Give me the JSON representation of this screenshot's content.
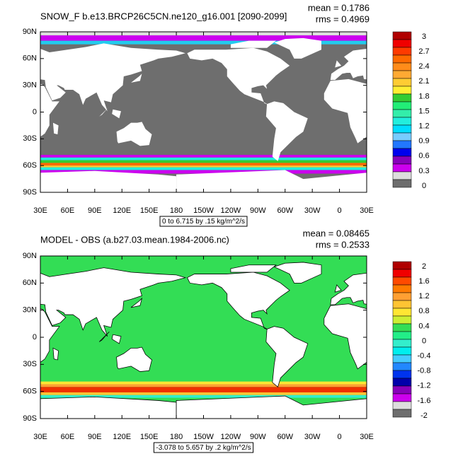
{
  "panels": [
    {
      "title": "SNOW_F b.e13.BRCP26C5CN.ne120_g16.001 [2090-2099]",
      "mean": "mean = 0.1786",
      "rms": "rms = 0.4969",
      "lat_labels": [
        "90N",
        "60N",
        "30N",
        "0",
        "30S",
        "60S",
        "90S"
      ],
      "lon_labels": [
        "30E",
        "60E",
        "90E",
        "120E",
        "150E",
        "180",
        "150W",
        "120W",
        "90W",
        "60W",
        "30W",
        "0",
        "30E"
      ],
      "range": "0 to 6.715 by .15 kg/m^2/s",
      "colorbar": {
        "labels": [
          "3",
          "2.7",
          "2.4",
          "2.1",
          "1.8",
          "1.5",
          "1.2",
          "0.9",
          "0.6",
          "0.3",
          "0"
        ],
        "colors": [
          "#b00000",
          "#f00000",
          "#ff3a00",
          "#ff6a00",
          "#ff8c1a",
          "#ffaa33",
          "#ffcc33",
          "#ffee33",
          "#33cc33",
          "#22ee77",
          "#33eeaa",
          "#22eedd",
          "#00ddff",
          "#77ccff",
          "#2277ff",
          "#0000ee",
          "#8800bb",
          "#cc00ee",
          "#dddddd",
          "#6e6e6e"
        ]
      }
    },
    {
      "title": "MODEL - OBS (a.b27.03.mean.1984-2006.nc)",
      "mean": "mean = 0.08465",
      "rms": "rms = 0.2533",
      "lat_labels": [
        "90N",
        "60N",
        "30N",
        "0",
        "30S",
        "60S",
        "90S"
      ],
      "lon_labels": [
        "30E",
        "60E",
        "90E",
        "120E",
        "150E",
        "180",
        "150W",
        "120W",
        "90W",
        "60W",
        "30W",
        "0",
        "30E"
      ],
      "range": "-3.078 to 5.657 by .2 kg/m^2/s",
      "colorbar": {
        "labels": [
          "2",
          "1.6",
          "1.2",
          "0.8",
          "0.4",
          "0",
          "-0.4",
          "-0.8",
          "-1.2",
          "-1.6",
          "-2"
        ],
        "colors": [
          "#b00000",
          "#f00000",
          "#ff4a00",
          "#ff7b00",
          "#ffa033",
          "#ffc433",
          "#ffe633",
          "#ccee33",
          "#33dd55",
          "#22ee88",
          "#33eecc",
          "#00eeee",
          "#44ccff",
          "#2288ff",
          "#0033ee",
          "#0000aa",
          "#8800bb",
          "#cc00ee",
          "#dddddd",
          "#6e6e6e"
        ]
      }
    }
  ]
}
